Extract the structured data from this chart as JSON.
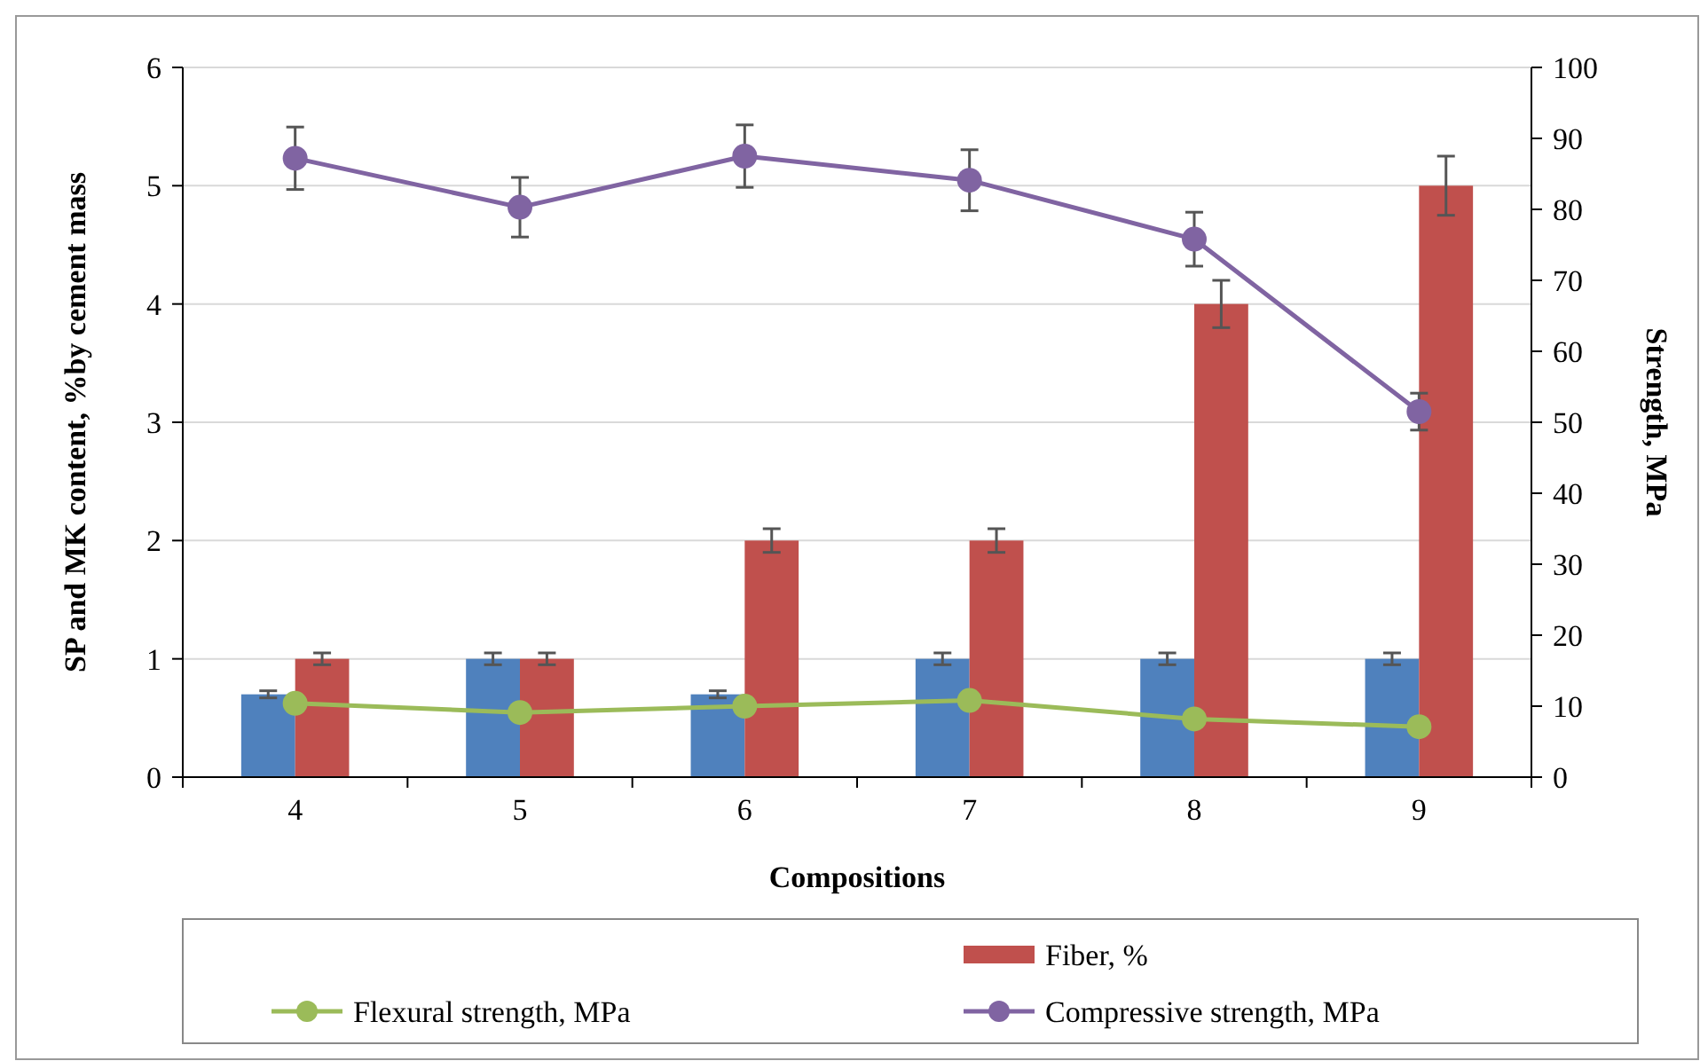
{
  "chart_data": {
    "type": "bar",
    "xlabel": "Compositions",
    "ylabel": "SP and MK content, %by cement mass",
    "y2label": "Strength, MPa",
    "categories": [
      "4",
      "5",
      "6",
      "7",
      "8",
      "9"
    ],
    "series": [
      {
        "color": "#4f81bd",
        "values": [
          0.7,
          1,
          0.7,
          1,
          1,
          1
        ],
        "errors": [
          0.03,
          0.05,
          0.03,
          0.05,
          0.05,
          0.05
        ]
      },
      {
        "name": "Fiber, %",
        "color": "#c0504d",
        "values": [
          1,
          1,
          2,
          2,
          4,
          5
        ],
        "errors": [
          0.05,
          0.05,
          0.1,
          0.1,
          0.2,
          0.25
        ]
      },
      {
        "name": "Flexural strength, MPa",
        "type": "line",
        "axis": "y2",
        "color": "#9bbb59",
        "values": [
          10.4,
          9.1,
          10.0,
          10.8,
          8.2,
          7.1
        ]
      },
      {
        "name": "Compressive strength, MPa",
        "type": "line",
        "axis": "y2",
        "color": "#8064a2",
        "values": [
          87.2,
          80.3,
          87.5,
          84.1,
          75.8,
          51.5
        ],
        "errors": [
          4.4,
          4.2,
          4.4,
          4.3,
          3.8,
          2.6
        ]
      }
    ],
    "ylim": [
      0,
      6
    ],
    "yticks": [
      0,
      1,
      2,
      3,
      4,
      5,
      6
    ],
    "y2lim": [
      0,
      100
    ],
    "y2ticks": [
      0,
      10,
      20,
      30,
      40,
      50,
      60,
      70,
      80,
      90,
      100
    ],
    "grid": "y",
    "legend": "bottom",
    "marker": "circle",
    "line_style": "solid"
  }
}
